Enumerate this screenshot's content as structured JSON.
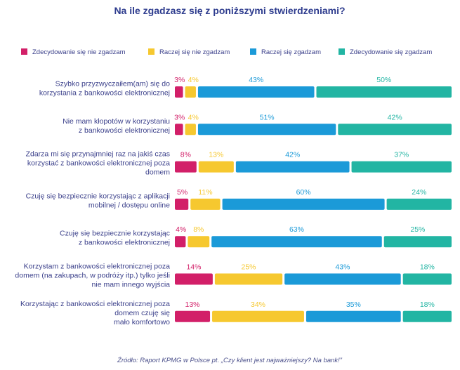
{
  "chart_data": {
    "type": "bar",
    "stacked": true,
    "orientation": "horizontal",
    "title": "Na ile zgadzasz się z poniższymi stwierdzeniami?",
    "categories": [
      "Szybko przyzwyczaiłem(am) się do korzystania z bankowości elektronicznej",
      "Nie mam kłopotów w korzystaniu z bankowości elektronicznej",
      "Zdarza mi się przynajmniej raz na jakiś czas korzystać z bankowości elektronicznej poza domem",
      "Czuję się bezpiecznie korzystając z aplikacji mobilnej / dostępu online",
      "Czuję się bezpiecznie korzystając z bankowości elektronicznej",
      "Korzystam z bankowości elektronicznej poza domem (na zakupach, w podróży itp.) tylko jeśli nie mam innego wyjścia",
      "Korzystając z bankowości elektronicznej poza domem czuję się mało komfortowo"
    ],
    "category_lines": [
      [
        "Szybko przyzwyczaiłem(am) się do",
        "korzystania z bankowości elektronicznej"
      ],
      [
        "Nie mam kłopotów w korzystaniu",
        "z bankowości elektronicznej"
      ],
      [
        "Zdarza mi się przynajmniej raz na jakiś czas",
        "korzystać z bankowości elektronicznej poza",
        "domem"
      ],
      [
        "Czuję się bezpiecznie korzystając z aplikacji",
        "mobilnej / dostępu online"
      ],
      [
        "Czuję się bezpiecznie korzystając",
        "z bankowości elektronicznej"
      ],
      [
        "Korzystam z bankowości elektronicznej poza",
        "domem (na zakupach, w podróży itp.) tylko jeśli",
        "nie mam innego wyjścia"
      ],
      [
        "Korzystając z bankowości elektronicznej poza",
        "domem czuję się",
        "mało komfortowo"
      ]
    ],
    "series": [
      {
        "name": "Zdecydowanie się nie zgadzam",
        "color": "#d21f68",
        "values": [
          3,
          3,
          8,
          5,
          4,
          14,
          13
        ]
      },
      {
        "name": "Raczej się nie zgadzam",
        "color": "#f6c82f",
        "values": [
          4,
          4,
          13,
          11,
          8,
          25,
          34
        ]
      },
      {
        "name": "Raczej się zgadzam",
        "color": "#1b9ad8",
        "values": [
          43,
          51,
          42,
          60,
          63,
          43,
          35
        ]
      },
      {
        "name": "Zdecydowanie się zgadzam",
        "color": "#22b5a3",
        "values": [
          50,
          42,
          37,
          24,
          25,
          18,
          18
        ]
      }
    ],
    "value_suffix": "%",
    "xlim": [
      0,
      100
    ],
    "legend": "top",
    "source": "Źródło: Raport KPMG w Polsce pt. „Czy klient jest najważniejszy? Na bank!”"
  },
  "colors": {
    "title": "#2e3c8e",
    "text": "#3a3f8a",
    "source": "#4a4f8a"
  }
}
